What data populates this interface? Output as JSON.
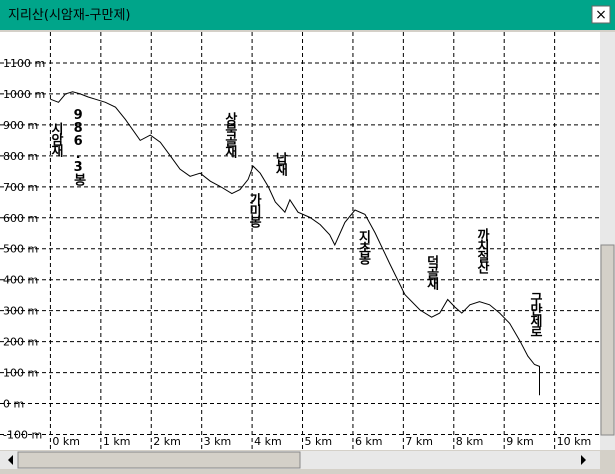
{
  "window": {
    "title": "지리산(시암재-구만제)",
    "close": "×"
  },
  "chart_data": {
    "type": "line",
    "color": "#000000",
    "grid": true,
    "x": [
      0,
      0.16,
      0.3,
      0.44,
      0.59,
      0.75,
      0.89,
      1.09,
      1.29,
      1.49,
      1.78,
      1.98,
      2.18,
      2.38,
      2.57,
      2.77,
      2.97,
      3.17,
      3.37,
      3.6,
      3.76,
      3.92,
      4.02,
      4.16,
      4.32,
      4.46,
      4.65,
      4.75,
      4.91,
      5.15,
      5.35,
      5.54,
      5.64,
      5.84,
      6.04,
      6.24,
      6.44,
      6.73,
      7.03,
      7.33,
      7.56,
      7.72,
      7.88,
      8.02,
      8.16,
      8.32,
      8.51,
      8.71,
      8.91,
      9.11,
      9.31,
      9.47,
      9.6,
      9.7,
      9.7
    ],
    "values": [
      983,
      973,
      1000,
      1007,
      1000,
      990,
      983,
      973,
      957,
      917,
      850,
      867,
      844,
      800,
      757,
      734,
      744,
      718,
      701,
      678,
      691,
      724,
      767,
      744,
      701,
      651,
      618,
      658,
      618,
      601,
      578,
      545,
      512,
      585,
      625,
      611,
      551,
      452,
      352,
      302,
      279,
      292,
      336,
      312,
      292,
      319,
      329,
      319,
      292,
      259,
      203,
      153,
      126,
      120,
      27
    ],
    "xlim": [
      -1,
      10.9
    ],
    "ylim": [
      -150,
      1200
    ],
    "xticks": [
      {
        "value": 0,
        "label": "0 km"
      },
      {
        "value": 1,
        "label": "1 km"
      },
      {
        "value": 2,
        "label": "2 km"
      },
      {
        "value": 3,
        "label": "3 km"
      },
      {
        "value": 4,
        "label": "4 km"
      },
      {
        "value": 5,
        "label": "5 km"
      },
      {
        "value": 6,
        "label": "6 km"
      },
      {
        "value": 7,
        "label": "7 km"
      },
      {
        "value": 8,
        "label": "8 km"
      },
      {
        "value": 9,
        "label": "9 km"
      },
      {
        "value": 10,
        "label": "10 km"
      }
    ],
    "yticks": [
      {
        "value": -100,
        "label": "-100 m"
      },
      {
        "value": 0,
        "label": "0 m"
      },
      {
        "value": 100,
        "label": "100 m"
      },
      {
        "value": 200,
        "label": "200 m"
      },
      {
        "value": 300,
        "label": "300 m"
      },
      {
        "value": 400,
        "label": "400 m"
      },
      {
        "value": 500,
        "label": "500 m"
      },
      {
        "value": 600,
        "label": "600 m"
      },
      {
        "value": 700,
        "label": "700 m"
      },
      {
        "value": 800,
        "label": "800 m"
      },
      {
        "value": 900,
        "label": "900 m"
      },
      {
        "value": 1000,
        "label": "1000 m"
      },
      {
        "value": 1100,
        "label": "1100 m"
      }
    ],
    "annotations": [
      {
        "text": "시암재",
        "x": 0.1
      },
      {
        "text": "986.3봉",
        "x": 0.55
      },
      {
        "text": "상북골재",
        "x": 3.55
      },
      {
        "text": "가미봉",
        "x": 4.03
      },
      {
        "text": "납재",
        "x": 4.55
      },
      {
        "text": "지초봉",
        "x": 6.2
      },
      {
        "text": "덕골재",
        "x": 7.55
      },
      {
        "text": "까치절산",
        "x": 8.55
      },
      {
        "text": "구만제로",
        "x": 9.6
      }
    ]
  }
}
